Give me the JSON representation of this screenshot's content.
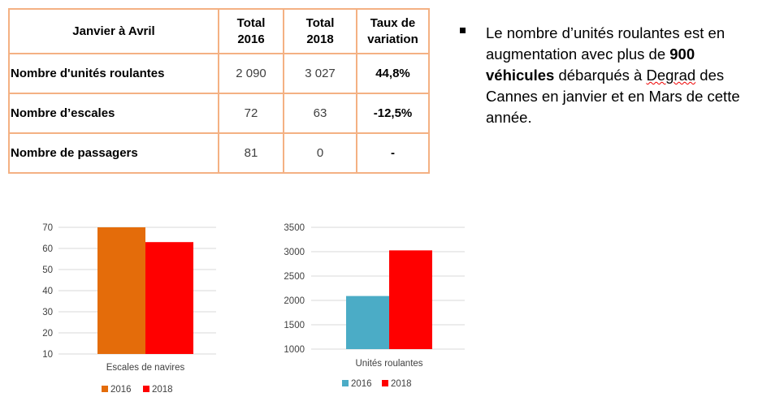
{
  "table": {
    "headers": [
      "Janvier à Avril",
      "Total\n2016",
      "Total\n2018",
      "Taux de\nvariation"
    ],
    "header_lines": [
      [
        "Janvier à Avril"
      ],
      [
        "Total",
        "2016"
      ],
      [
        "Total",
        "2018"
      ],
      [
        "Taux de",
        "variation"
      ]
    ],
    "rows": [
      {
        "label": "Nombre d'unités roulantes",
        "v2016": "2 090",
        "v2018": "3 027",
        "variation": "44,8%"
      },
      {
        "label": "Nombre d’escales",
        "v2016": "72",
        "v2018": "63",
        "variation": "-12,5%"
      },
      {
        "label": "Nombre de passagers",
        "v2016": "81",
        "v2018": "0",
        "variation": "-"
      }
    ]
  },
  "bullet_text": {
    "part1": "Le nombre d’unités roulantes est en augmentation avec plus de ",
    "bold": "900 véhicules",
    "part2": " débarqués à ",
    "misspelled": "Degrad",
    "part3": " des Cannes en janvier et  en Mars de cette année."
  },
  "chart_data": [
    {
      "type": "bar",
      "title": "",
      "categories": [
        "Escales de navires"
      ],
      "series": [
        {
          "name": "2016",
          "values": [
            72
          ],
          "color": "#e46c0a"
        },
        {
          "name": "2018",
          "values": [
            63
          ],
          "color": "#ff0000"
        }
      ],
      "ylim": [
        10,
        70
      ],
      "yticks": [
        10,
        20,
        30,
        40,
        50,
        60,
        70
      ],
      "grid": true,
      "legend": "bottom"
    },
    {
      "type": "bar",
      "title": "",
      "categories": [
        "Unités roulantes"
      ],
      "series": [
        {
          "name": "2016",
          "values": [
            2090
          ],
          "color": "#4bacc6"
        },
        {
          "name": "2018",
          "values": [
            3027
          ],
          "color": "#ff0000"
        }
      ],
      "ylim": [
        1000,
        3500
      ],
      "yticks": [
        1000,
        1500,
        2000,
        2500,
        3000,
        3500
      ],
      "grid": true,
      "legend": "bottom"
    }
  ]
}
